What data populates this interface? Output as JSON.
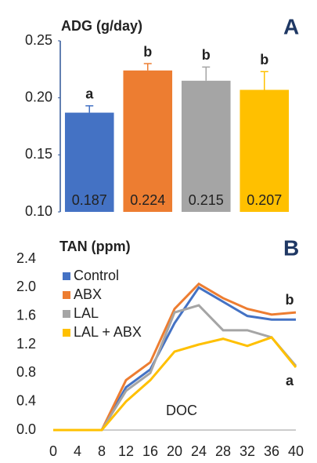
{
  "chart_data": [
    {
      "type": "bar",
      "title": "ADG (g/day)",
      "panel_label": "A",
      "categories": [
        null,
        null,
        null,
        null
      ],
      "values": [
        0.187,
        0.224,
        0.215,
        0.207
      ],
      "errors": [
        0.006,
        0.006,
        0.012,
        0.016
      ],
      "group_letters": [
        "a",
        "b",
        "b",
        "b"
      ],
      "colors": [
        "#4472c4",
        "#ed7d31",
        "#a5a5a5",
        "#ffc000"
      ],
      "ylim": [
        0.1,
        0.25
      ],
      "yticks": [
        {
          "value": 0.1,
          "label": "0.10"
        },
        0.15,
        {
          "value": 0.2,
          "label": "0.20"
        },
        0.25
      ],
      "grid": false
    },
    {
      "type": "line",
      "title": "TAN (ppm)",
      "panel_label": "B",
      "x_label": "DOC",
      "x": [
        0,
        4,
        8,
        12,
        16,
        20,
        24,
        28,
        32,
        36,
        40
      ],
      "series": [
        {
          "name": "Control",
          "color": "#4472c4",
          "values": [
            0,
            0,
            0,
            0.6,
            0.85,
            1.5,
            2.0,
            1.8,
            1.6,
            1.55,
            1.55
          ]
        },
        {
          "name": "ABX",
          "color": "#ed7d31",
          "values": [
            0,
            0,
            0,
            0.7,
            0.95,
            1.7,
            2.05,
            1.85,
            1.7,
            1.62,
            1.65
          ]
        },
        {
          "name": "LAL",
          "color": "#a5a5a5",
          "values": [
            0,
            0,
            0,
            0.55,
            0.8,
            1.65,
            1.75,
            1.4,
            1.4,
            1.3,
            0.9
          ]
        },
        {
          "name": "LAL + ABX",
          "color": "#ffc000",
          "values": [
            0,
            0,
            0,
            0.4,
            0.7,
            1.1,
            1.2,
            1.28,
            1.18,
            1.3,
            0.88
          ]
        }
      ],
      "annotations": [
        "b",
        "a"
      ],
      "xlim": [
        0,
        40
      ],
      "xticks": [
        0,
        4,
        8,
        12,
        16,
        20,
        24,
        28,
        32,
        36,
        40
      ],
      "ylim": [
        0,
        2.4
      ],
      "yticks": [
        {
          "value": 0,
          "label": "0.0"
        },
        0.4,
        0.8,
        1.2,
        1.6,
        {
          "value": 2,
          "label": "2.0"
        },
        2.4
      ],
      "grid": false
    }
  ]
}
